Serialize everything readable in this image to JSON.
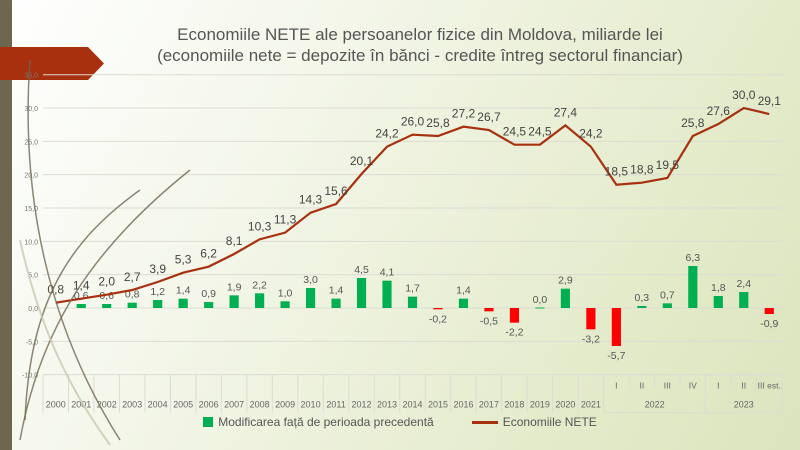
{
  "chart_data": {
    "type": "bar+line",
    "title": "Economiile NETE ale persoanelor fizice din Moldova, miliarde lei",
    "subtitle": "(economiile nete = depozite în bănci - credite întreg sectorul financiar)",
    "xlabel": "",
    "ylabel": "",
    "ylim": [
      -10,
      35
    ],
    "yticks": [
      "35,0",
      "30,0",
      "25,0",
      "20,0",
      "15,0",
      "10,0",
      "5,0",
      "0,0",
      "-5,0",
      "-10,0"
    ],
    "ytick_values": [
      35,
      30,
      25,
      20,
      15,
      10,
      5,
      0,
      -5,
      -10
    ],
    "grid": true,
    "legend_position": "bottom",
    "categories": [
      "2000",
      "2001",
      "2002",
      "2003",
      "2004",
      "2005",
      "2006",
      "2007",
      "2008",
      "2009",
      "2010",
      "2011",
      "2012",
      "2013",
      "2014",
      "2015",
      "2016",
      "2017",
      "2018",
      "2019",
      "2020",
      "2021",
      "I",
      "II",
      "III",
      "IV",
      "I",
      "II",
      "III est."
    ],
    "category_groups": [
      {
        "label": "2022",
        "from": 22,
        "to": 25
      },
      {
        "label": "2023",
        "from": 26,
        "to": 28
      }
    ],
    "series": [
      {
        "name": "Modificarea față de perioada precedentă",
        "kind": "bar",
        "values": [
          null,
          0.6,
          0.6,
          0.8,
          1.2,
          1.4,
          0.9,
          1.9,
          2.2,
          1.0,
          3.0,
          1.4,
          4.5,
          4.1,
          1.7,
          -0.2,
          1.4,
          -0.5,
          -2.2,
          0.0,
          2.9,
          -3.2,
          -5.7,
          0.3,
          0.7,
          6.3,
          1.8,
          2.4,
          -0.9
        ]
      },
      {
        "name": "Economiile NETE",
        "kind": "line",
        "values": [
          0.8,
          1.4,
          2.0,
          2.7,
          3.9,
          5.3,
          6.2,
          8.1,
          10.3,
          11.3,
          14.3,
          15.6,
          20.1,
          24.2,
          26.0,
          25.8,
          27.2,
          26.7,
          24.5,
          24.5,
          27.4,
          24.2,
          18.5,
          18.8,
          19.5,
          25.8,
          27.6,
          30.0,
          29.1
        ]
      }
    ],
    "colors": {
      "positive_bar": "#00b050",
      "negative_bar": "#ff0000",
      "line": "#a8300f"
    }
  }
}
